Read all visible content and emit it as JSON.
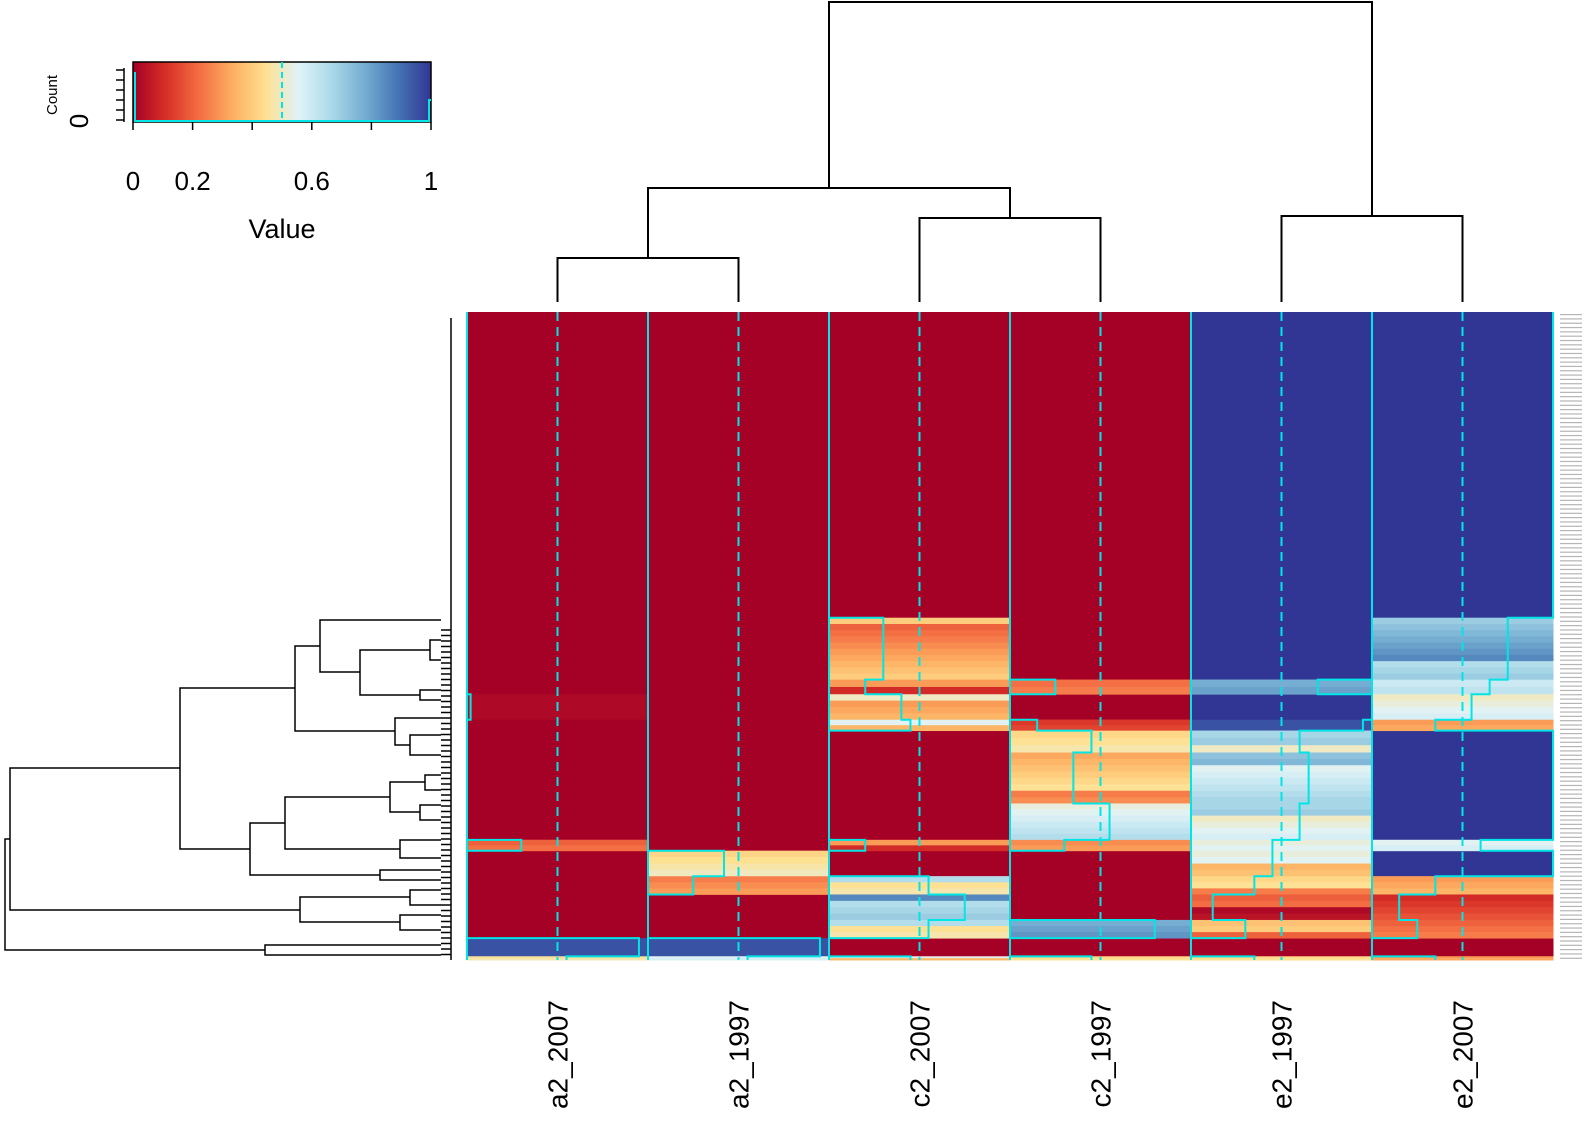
{
  "chart_data": {
    "type": "heatmap",
    "columns": [
      "a2_2007",
      "a2_1997",
      "c2_2007",
      "c2_1997",
      "e2_1997",
      "e2_2007"
    ],
    "row_labels": "cg-probe identifiers (tiny, unreadable)",
    "color_key": {
      "title": "Value",
      "hist_ylabel": "Count",
      "hist_ytick": "0",
      "ticks": [
        "0",
        "0.2",
        "0.6",
        "1"
      ],
      "tick_values": [
        0,
        0.2,
        0.6,
        1
      ],
      "range": [
        0,
        1
      ],
      "dashed_value": 0.5,
      "stops": [
        "#a50026",
        "#d73027",
        "#f46d43",
        "#fdae61",
        "#fee090",
        "#e0f3f8",
        "#abd9e9",
        "#74add1",
        "#4575b4",
        "#313695"
      ]
    },
    "trace_color": "#00e5e5",
    "segments": [
      {
        "frac": 0.42,
        "values": [
          0.0,
          0.0,
          0.0,
          0.0,
          1.0,
          1.0
        ]
      },
      {
        "frac": 0.085,
        "values": [
          0.0,
          0.0,
          0.3,
          0.0,
          1.0,
          0.75
        ]
      },
      {
        "frac": 0.02,
        "values": [
          0.0,
          0.0,
          0.2,
          0.25,
          0.7,
          0.65
        ]
      },
      {
        "frac": 0.035,
        "values": [
          0.02,
          0.0,
          0.4,
          0.0,
          1.0,
          0.55
        ]
      },
      {
        "frac": 0.015,
        "values": [
          0.0,
          0.0,
          0.45,
          0.15,
          0.95,
          0.35
        ]
      },
      {
        "frac": 0.03,
        "values": [
          0.0,
          0.0,
          0.0,
          0.45,
          0.6,
          1.0
        ]
      },
      {
        "frac": 0.07,
        "values": [
          0.0,
          0.0,
          0.0,
          0.35,
          0.65,
          1.0
        ]
      },
      {
        "frac": 0.05,
        "values": [
          0.0,
          0.0,
          0.0,
          0.55,
          0.6,
          1.0
        ]
      },
      {
        "frac": 0.015,
        "values": [
          0.3,
          0.0,
          0.2,
          0.3,
          0.45,
          0.6
        ]
      },
      {
        "frac": 0.035,
        "values": [
          0.0,
          0.42,
          0.0,
          0.0,
          0.45,
          1.0
        ]
      },
      {
        "frac": 0.025,
        "values": [
          0.0,
          0.25,
          0.55,
          0.0,
          0.35,
          0.35
        ]
      },
      {
        "frac": 0.035,
        "values": [
          0.0,
          0.0,
          0.75,
          0.0,
          0.12,
          0.15
        ]
      },
      {
        "frac": 0.025,
        "values": [
          0.0,
          0.0,
          0.55,
          0.8,
          0.3,
          0.25
        ]
      },
      {
        "frac": 0.025,
        "values": [
          0.95,
          0.95,
          0.0,
          0.0,
          0.0,
          0.0
        ]
      },
      {
        "frac": 0.005,
        "values": [
          0.55,
          0.55,
          0.45,
          0.45,
          0.35,
          0.35
        ]
      }
    ]
  }
}
